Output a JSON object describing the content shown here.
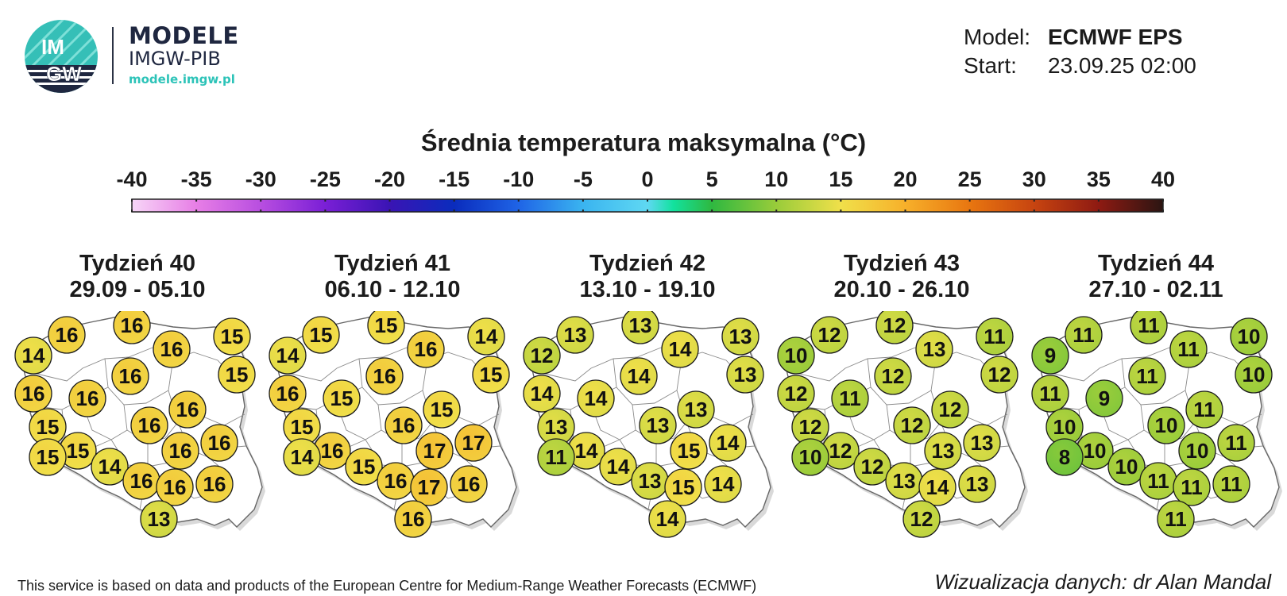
{
  "logo": {
    "badge_top": "IM",
    "badge_bottom": "GW",
    "name": "MODELE",
    "org": "IMGW-PIB",
    "url": "modele.imgw.pl",
    "colors": {
      "navy": "#1f2740",
      "teal": "#35bfb7"
    }
  },
  "meta": {
    "model_label": "Model:",
    "model_value": "ECMWF EPS",
    "start_label": "Start:",
    "start_value": "23.09.25 02:00"
  },
  "title": "Średnia temperatura maksymalna (°C)",
  "colorbar": {
    "ticks": [
      "-40",
      "-35",
      "-30",
      "-25",
      "-20",
      "-15",
      "-10",
      "-5",
      "0",
      "5",
      "10",
      "15",
      "20",
      "25",
      "30",
      "35",
      "40"
    ],
    "range": [
      -40,
      40
    ],
    "stops": [
      {
        "v": -40,
        "c": "#f7d6f7"
      },
      {
        "v": -35,
        "c": "#e77ee6"
      },
      {
        "v": -30,
        "c": "#b84ee0"
      },
      {
        "v": -25,
        "c": "#7a1fd6"
      },
      {
        "v": -20,
        "c": "#3a14b4"
      },
      {
        "v": -15,
        "c": "#0a2cbd"
      },
      {
        "v": -10,
        "c": "#1f64e6"
      },
      {
        "v": -5,
        "c": "#3ab4f0"
      },
      {
        "v": 0,
        "c": "#5fd8f2"
      },
      {
        "v": 2,
        "c": "#12e29e"
      },
      {
        "v": 5,
        "c": "#2fb840"
      },
      {
        "v": 10,
        "c": "#99cc3a"
      },
      {
        "v": 15,
        "c": "#f0e04a"
      },
      {
        "v": 20,
        "c": "#f7b02a"
      },
      {
        "v": 25,
        "c": "#e87610"
      },
      {
        "v": 30,
        "c": "#c74410"
      },
      {
        "v": 35,
        "c": "#8e1a12"
      },
      {
        "v": 40,
        "c": "#2b1512"
      }
    ]
  },
  "weeks": [
    {
      "label": "Tydzień 40",
      "dates": "29.09 - 05.10",
      "values": [
        16,
        16,
        16,
        15,
        14,
        15,
        16,
        16,
        16,
        16,
        15,
        16,
        16,
        16,
        15,
        14,
        16,
        16,
        16,
        15,
        13
      ]
    },
    {
      "label": "Tydzień 41",
      "dates": "06.10 - 12.10",
      "values": [
        15,
        15,
        16,
        14,
        14,
        15,
        16,
        16,
        15,
        15,
        15,
        16,
        17,
        17,
        16,
        15,
        16,
        17,
        16,
        14,
        16
      ]
    },
    {
      "label": "Tydzień 42",
      "dates": "13.10 - 19.10",
      "values": [
        13,
        13,
        14,
        13,
        12,
        13,
        14,
        14,
        14,
        13,
        13,
        13,
        15,
        14,
        14,
        14,
        13,
        15,
        14,
        11,
        14
      ]
    },
    {
      "label": "Tydzień 43",
      "dates": "20.10 - 26.10",
      "values": [
        12,
        12,
        13,
        11,
        10,
        12,
        12,
        12,
        11,
        12,
        12,
        12,
        13,
        13,
        12,
        12,
        13,
        14,
        13,
        10,
        12
      ]
    },
    {
      "label": "Tydzień 44",
      "dates": "27.10 - 02.11",
      "values": [
        11,
        11,
        11,
        10,
        9,
        10,
        11,
        11,
        9,
        11,
        10,
        10,
        10,
        11,
        10,
        10,
        11,
        11,
        11,
        8,
        11
      ]
    }
  ],
  "footer": {
    "credit_left": "This service is based on data and products of the European Centre for Medium-Range Weather Forecasts (ECMWF)",
    "credit_right": "Wizualizacja danych: dr Alan Mandal"
  }
}
